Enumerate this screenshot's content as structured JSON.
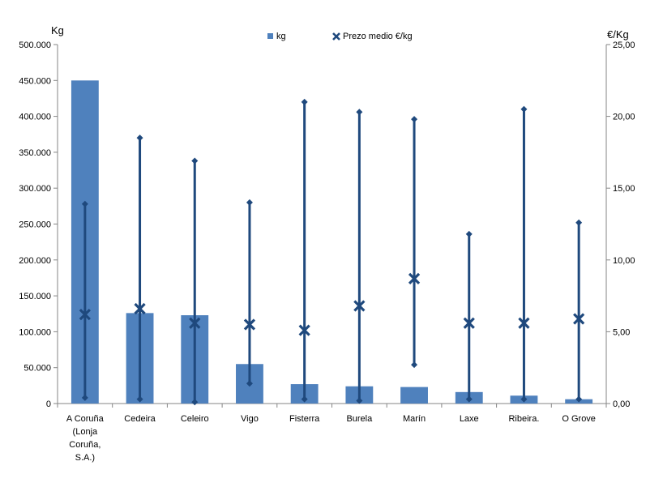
{
  "chart_data": {
    "type": "bar",
    "categories": [
      [
        "A Coruña",
        "(Lonja",
        "Coruña,",
        "S.A.)"
      ],
      [
        "Cedeira"
      ],
      [
        "Celeiro"
      ],
      [
        "Vigo"
      ],
      [
        "Fisterra"
      ],
      [
        "Burela"
      ],
      [
        "Marín"
      ],
      [
        "Laxe"
      ],
      [
        "Ribeira."
      ],
      [
        "O Grove"
      ]
    ],
    "ylabel_left": "Kg",
    "ylabel_right": "€/Kg",
    "ylim_left": [
      0,
      500000
    ],
    "ylim_right": [
      0,
      25
    ],
    "left_ticks": [
      "0",
      "50.000",
      "100.000",
      "150.000",
      "200.000",
      "250.000",
      "300.000",
      "350.000",
      "400.000",
      "450.000",
      "500.000"
    ],
    "right_ticks": [
      "0,00",
      "5,00",
      "10,00",
      "15,00",
      "20,00",
      "25,00"
    ],
    "legend_position": "top",
    "grid": false,
    "series": [
      {
        "name": "kg",
        "kind": "bar",
        "axis": "left",
        "color": "#4f81bd",
        "values": [
          450000,
          126000,
          123000,
          55000,
          27000,
          24000,
          23000,
          16000,
          11000,
          6000
        ]
      },
      {
        "name": "Prezo medio €/kg",
        "kind": "high-low-average",
        "axis": "right",
        "color": "#1f497d",
        "low": [
          0.4,
          0.3,
          0.1,
          1.4,
          0.3,
          0.2,
          2.7,
          0.3,
          0.3,
          0.3
        ],
        "high": [
          13.9,
          18.5,
          16.9,
          14.0,
          21.0,
          20.3,
          19.8,
          11.8,
          20.5,
          12.6
        ],
        "average": [
          6.2,
          6.6,
          5.6,
          5.5,
          5.1,
          6.8,
          8.7,
          5.6,
          5.6,
          5.9
        ]
      }
    ]
  }
}
